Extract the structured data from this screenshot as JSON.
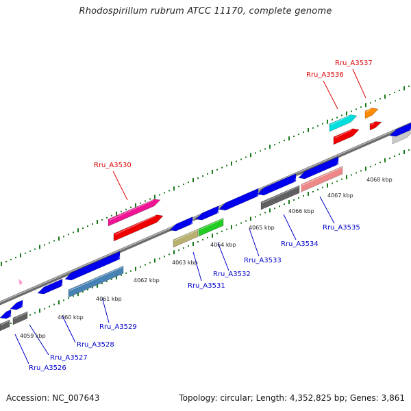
{
  "title": "Rhodospirillum rubrum ATCC 11170, complete genome",
  "footer": {
    "accession": "Accession: NC_007643",
    "topology": "Topology: circular; Length: 4,352,825 bp; Genes: 3,861"
  },
  "colors": {
    "backbone": "#8c8c8c",
    "tick": "#1a7a1a",
    "label_forward": "#dd0000",
    "label_reverse": "#0000cc"
  },
  "ruler": [
    {
      "label": "4059 kbp"
    },
    {
      "label": "4060 kbp"
    },
    {
      "label": "4061 kbp"
    },
    {
      "label": "4062 kbp"
    },
    {
      "label": "4063 kbp"
    },
    {
      "label": "4064 kbp"
    },
    {
      "label": "4065 kbp"
    },
    {
      "label": "4066 kbp"
    },
    {
      "label": "4067 kbp"
    },
    {
      "label": "4068 kbp"
    }
  ],
  "labels": {
    "Rru_A3530": "Rru_A3530",
    "Rru_A3536": "Rru_A3536",
    "Rru_A3537": "Rru_A3537",
    "Rru_A3526": "Rru_A3526",
    "Rru_A3527": "Rru_A3527",
    "Rru_A3528": "Rru_A3528",
    "Rru_A3529": "Rru_A3529",
    "Rru_A3531": "Rru_A3531",
    "Rru_A3532": "Rru_A3532",
    "Rru_A3533": "Rru_A3533",
    "Rru_A3534": "Rru_A3534",
    "Rru_A3535": "Rru_A3535"
  },
  "feature_colors": {
    "blue": "#0000ee",
    "magenta": "#ee1493",
    "red": "#ee0000",
    "cyan": "#00dddd",
    "orange": "#ff8c00",
    "gray": "#606060",
    "lightgray": "#c8c8c8",
    "khaki": "#b8b070",
    "green": "#22cc22",
    "steelblue": "#4682b4",
    "pink": "#ee8888"
  }
}
